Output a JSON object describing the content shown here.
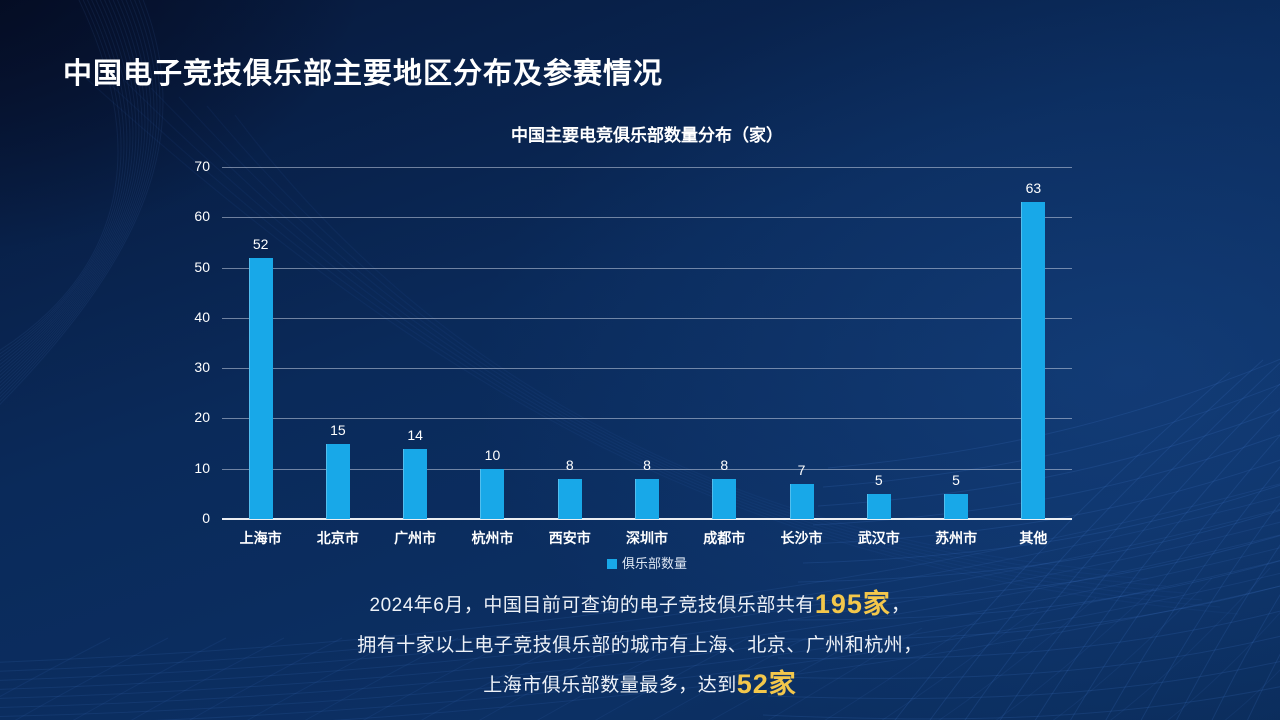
{
  "page": {
    "title": "中国电子竞技俱乐部主要地区分布及参赛情况"
  },
  "colors": {
    "background": "#0A2A5A",
    "bar": "#18A8E8",
    "highlight": "#F3C74B",
    "text": "#FFFFFF",
    "gridline": "rgba(213,222,238,0.5)"
  },
  "chart_data": {
    "type": "bar",
    "title": "中国主要电竞俱乐部数量分布（家）",
    "categories": [
      "上海市",
      "北京市",
      "广州市",
      "杭州市",
      "西安市",
      "深圳市",
      "成都市",
      "长沙市",
      "武汉市",
      "苏州市",
      "其他"
    ],
    "values": [
      52,
      15,
      14,
      10,
      8,
      8,
      8,
      7,
      5,
      5,
      63
    ],
    "legend": "俱乐部数量",
    "xlabel": "",
    "ylabel": "",
    "ylim": [
      0,
      70
    ],
    "ytick_step": 10,
    "grid": "horizontal",
    "legend_position": "bottom"
  },
  "notes": [
    {
      "pre": "2024年6月，中国目前可查询的电子竞技俱乐部共有",
      "highlight": "195家",
      "post": "，"
    },
    {
      "pre": "拥有十家以上电子竞技俱乐部的城市有上海、北京、广州和杭州，",
      "highlight": "",
      "post": ""
    },
    {
      "pre": "上海市俱乐部数量最多，达到",
      "highlight": "52家",
      "post": ""
    }
  ]
}
